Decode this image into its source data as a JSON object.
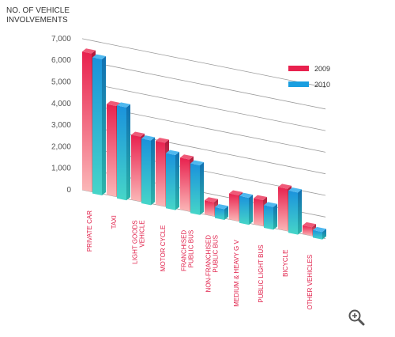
{
  "chart_data": {
    "type": "bar",
    "ylabel": "NO. OF VEHICLE\nINVOLVEMENTS",
    "ylim": [
      0,
      7000
    ],
    "yticks": [
      "0",
      "1,000",
      "2,000",
      "3,000",
      "4,000",
      "5,000",
      "6,000",
      "7,000"
    ],
    "grid": true,
    "legend_position": "right",
    "categories": [
      "PRIVATE CAR",
      "TAXI",
      "LIGHT GOODS\nVEHICLE",
      "MOTOR CYCLE",
      "FRANCHISED\nPUBLIC BUS",
      "NON-FRANCHISED\nPUBLIC BUS",
      "MEDIUM & HEAVY G V",
      "PUBLIC LIGHT BUS",
      "BICYCLE",
      "OTHER VEHICLES"
    ],
    "series": [
      {
        "name": "2009",
        "color": "#e8214e",
        "values": [
          6400,
          4200,
          3000,
          2950,
          2400,
          650,
          1200,
          1200,
          1950,
          400
        ]
      },
      {
        "name": "2010",
        "color": "#1a9ee0",
        "values": [
          6300,
          4300,
          3000,
          2550,
          2300,
          500,
          1250,
          1050,
          1950,
          350
        ]
      }
    ]
  },
  "ui": {
    "zoom_icon": "zoom-in-icon"
  }
}
